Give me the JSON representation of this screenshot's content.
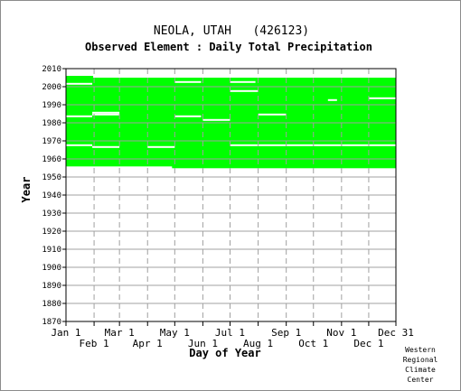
{
  "chart_data": {
    "type": "heatmap",
    "title": "NEOLA, UTAH   (426123)",
    "subtitle": "Observed Element : Daily Total Precipitation",
    "xlabel": "Day of Year",
    "ylabel": "Year",
    "x_range": [
      1,
      365
    ],
    "ylim": [
      1870,
      2010
    ],
    "y_ticks": [
      1870,
      1880,
      1890,
      1900,
      1910,
      1920,
      1930,
      1940,
      1950,
      1960,
      1970,
      1980,
      1990,
      2000,
      2010
    ],
    "x_ticks_top": [
      {
        "label": "Jan 1",
        "day": 1
      },
      {
        "label": "Mar 1",
        "day": 60
      },
      {
        "label": "May 1",
        "day": 121
      },
      {
        "label": "Jul 1",
        "day": 182
      },
      {
        "label": "Sep 1",
        "day": 244
      },
      {
        "label": "Nov 1",
        "day": 305
      },
      {
        "label": "Dec 31",
        "day": 365
      }
    ],
    "x_ticks_bottom": [
      {
        "label": "Feb 1",
        "day": 32
      },
      {
        "label": "Apr 1",
        "day": 91
      },
      {
        "label": "Jun 1",
        "day": 152
      },
      {
        "label": "Aug 1",
        "day": 213
      },
      {
        "label": "Oct 1",
        "day": 274
      },
      {
        "label": "Dec 1",
        "day": 335
      }
    ],
    "grid": true,
    "colors": {
      "observed": "#00ff00",
      "grid": "#a0a0a0",
      "missing": "#ffffff"
    },
    "data_coverage": {
      "first_year": 1955,
      "last_year": 2005,
      "first_year_start_day": 118,
      "last_year_end_day": 31,
      "missing_spans": [
        {
          "year": 2002,
          "start_day": 121,
          "end_day": 150
        },
        {
          "year": 2002,
          "start_day": 182,
          "end_day": 210
        },
        {
          "year": 2001,
          "start_day": 1,
          "end_day": 30
        },
        {
          "year": 1997,
          "start_day": 182,
          "end_day": 213
        },
        {
          "year": 1993,
          "start_day": 335,
          "end_day": 365
        },
        {
          "year": 1992,
          "start_day": 290,
          "end_day": 300
        },
        {
          "year": 1985,
          "start_day": 30,
          "end_day": 60
        },
        {
          "year": 1984,
          "start_day": 30,
          "end_day": 60
        },
        {
          "year": 1984,
          "start_day": 213,
          "end_day": 244
        },
        {
          "year": 1983,
          "start_day": 1,
          "end_day": 30
        },
        {
          "year": 1983,
          "start_day": 121,
          "end_day": 150
        },
        {
          "year": 1981,
          "start_day": 152,
          "end_day": 182
        },
        {
          "year": 1967,
          "start_day": 1,
          "end_day": 30
        },
        {
          "year": 1967,
          "start_day": 182,
          "end_day": 365
        },
        {
          "year": 1966,
          "start_day": 30,
          "end_day": 60
        },
        {
          "year": 1966,
          "start_day": 91,
          "end_day": 121
        }
      ]
    }
  },
  "credit": [
    "Western",
    "Regional",
    "Climate",
    "Center"
  ]
}
